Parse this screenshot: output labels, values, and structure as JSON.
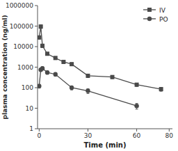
{
  "chart_data": {
    "type": "line",
    "xlabel": "Time (min)",
    "ylabel": "plasma concentration (ng/ml)",
    "series": [
      {
        "name": "IV",
        "color": "#4a4a4a",
        "marker": "square",
        "line_style": "solid",
        "x": [
          0,
          1,
          2,
          5,
          10,
          15,
          20,
          30,
          45,
          60,
          75
        ],
        "values": [
          28000,
          95000,
          11000,
          4500,
          2800,
          1800,
          1400,
          380,
          330,
          140,
          85
        ],
        "error_low": [
          5000,
          18000,
          2000,
          700,
          450,
          280,
          230,
          70,
          55,
          25,
          18
        ],
        "error_high": [
          5000,
          18000,
          2000,
          700,
          450,
          280,
          230,
          70,
          55,
          25,
          18
        ]
      },
      {
        "name": "PO",
        "color": "#4a4a4a",
        "marker": "circle",
        "line_style": "solid",
        "x": [
          0,
          1,
          2,
          5,
          10,
          20,
          30,
          60
        ],
        "values": [
          120,
          750,
          880,
          550,
          450,
          100,
          70,
          13
        ],
        "error_low": [
          25,
          130,
          160,
          100,
          90,
          22,
          18,
          4
        ],
        "error_high": [
          25,
          130,
          160,
          100,
          90,
          22,
          18,
          4
        ]
      }
    ],
    "xlim": [
      -1,
      82
    ],
    "xticks": [
      0,
      30,
      60,
      80
    ],
    "ylim": [
      1,
      1000000
    ],
    "yticks": [
      1,
      10,
      100,
      1000,
      10000,
      100000,
      1000000
    ],
    "log": "y",
    "grid": false,
    "legend": "upper right"
  }
}
